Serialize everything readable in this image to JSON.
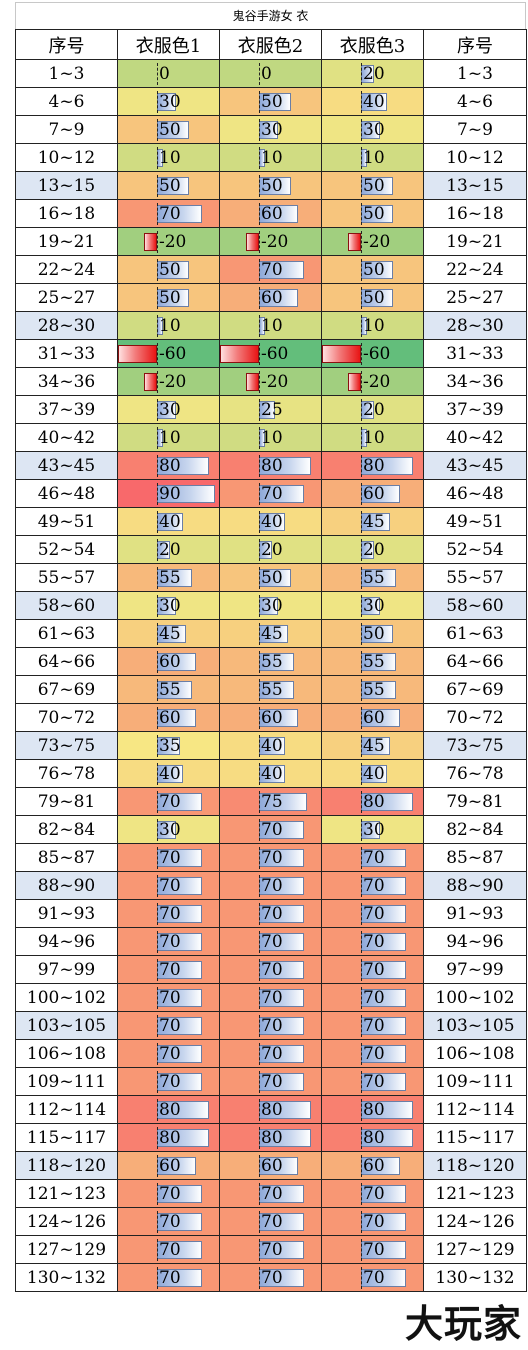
{
  "title": "鬼谷手游女 衣",
  "headers": [
    "序号",
    "衣服色1",
    "衣服色2",
    "衣服色3",
    "序号"
  ],
  "rows": [
    {
      "range": "1~3",
      "v": [
        0,
        0,
        20
      ],
      "alt": false
    },
    {
      "range": "4~6",
      "v": [
        30,
        50,
        40
      ],
      "alt": false
    },
    {
      "range": "7~9",
      "v": [
        50,
        30,
        30
      ],
      "alt": false
    },
    {
      "range": "10~12",
      "v": [
        10,
        10,
        10
      ],
      "alt": false
    },
    {
      "range": "13~15",
      "v": [
        50,
        50,
        50
      ],
      "alt": true
    },
    {
      "range": "16~18",
      "v": [
        70,
        60,
        50
      ],
      "alt": false
    },
    {
      "range": "19~21",
      "v": [
        -20,
        -20,
        -20
      ],
      "alt": false
    },
    {
      "range": "22~24",
      "v": [
        50,
        70,
        50
      ],
      "alt": false
    },
    {
      "range": "25~27",
      "v": [
        50,
        60,
        50
      ],
      "alt": false
    },
    {
      "range": "28~30",
      "v": [
        10,
        10,
        10
      ],
      "alt": true
    },
    {
      "range": "31~33",
      "v": [
        -60,
        -60,
        -60
      ],
      "alt": false
    },
    {
      "range": "34~36",
      "v": [
        -20,
        -20,
        -20
      ],
      "alt": false
    },
    {
      "range": "37~39",
      "v": [
        30,
        25,
        20
      ],
      "alt": false
    },
    {
      "range": "40~42",
      "v": [
        10,
        10,
        10
      ],
      "alt": false
    },
    {
      "range": "43~45",
      "v": [
        80,
        80,
        80
      ],
      "alt": true
    },
    {
      "range": "46~48",
      "v": [
        90,
        70,
        60
      ],
      "alt": false
    },
    {
      "range": "49~51",
      "v": [
        40,
        40,
        45
      ],
      "alt": false
    },
    {
      "range": "52~54",
      "v": [
        20,
        20,
        20
      ],
      "alt": false
    },
    {
      "range": "55~57",
      "v": [
        55,
        50,
        55
      ],
      "alt": false
    },
    {
      "range": "58~60",
      "v": [
        30,
        30,
        30
      ],
      "alt": true
    },
    {
      "range": "61~63",
      "v": [
        45,
        45,
        50
      ],
      "alt": false
    },
    {
      "range": "64~66",
      "v": [
        60,
        55,
        55
      ],
      "alt": false
    },
    {
      "range": "67~69",
      "v": [
        55,
        55,
        55
      ],
      "alt": false
    },
    {
      "range": "70~72",
      "v": [
        60,
        60,
        60
      ],
      "alt": false
    },
    {
      "range": "73~75",
      "v": [
        35,
        40,
        45
      ],
      "alt": true
    },
    {
      "range": "76~78",
      "v": [
        40,
        40,
        40
      ],
      "alt": false
    },
    {
      "range": "79~81",
      "v": [
        70,
        75,
        80
      ],
      "alt": false
    },
    {
      "range": "82~84",
      "v": [
        30,
        70,
        30
      ],
      "alt": false
    },
    {
      "range": "85~87",
      "v": [
        70,
        70,
        70
      ],
      "alt": false
    },
    {
      "range": "88~90",
      "v": [
        70,
        70,
        70
      ],
      "alt": true
    },
    {
      "range": "91~93",
      "v": [
        70,
        70,
        70
      ],
      "alt": false
    },
    {
      "range": "94~96",
      "v": [
        70,
        70,
        70
      ],
      "alt": false
    },
    {
      "range": "97~99",
      "v": [
        70,
        70,
        70
      ],
      "alt": false
    },
    {
      "range": "100~102",
      "v": [
        70,
        70,
        70
      ],
      "alt": false
    },
    {
      "range": "103~105",
      "v": [
        70,
        70,
        70
      ],
      "alt": true
    },
    {
      "range": "106~108",
      "v": [
        70,
        70,
        70
      ],
      "alt": false
    },
    {
      "range": "109~111",
      "v": [
        70,
        70,
        70
      ],
      "alt": false
    },
    {
      "range": "112~114",
      "v": [
        80,
        80,
        80
      ],
      "alt": false
    },
    {
      "range": "115~117",
      "v": [
        80,
        80,
        80
      ],
      "alt": false
    },
    {
      "range": "118~120",
      "v": [
        60,
        60,
        60
      ],
      "alt": true
    },
    {
      "range": "121~123",
      "v": [
        70,
        70,
        70
      ],
      "alt": false
    },
    {
      "range": "124~126",
      "v": [
        70,
        70,
        70
      ],
      "alt": false
    },
    {
      "range": "127~129",
      "v": [
        70,
        70,
        70
      ],
      "alt": false
    },
    {
      "range": "130~132",
      "v": [
        70,
        70,
        70
      ],
      "alt": false
    }
  ],
  "colors": {
    "scale": [
      "#63be7b",
      "#f7e784",
      "#f8696b"
    ],
    "alt_row": "#dde6f3",
    "bar_positive": "#8fa9d9",
    "bar_negative": "#e81515"
  },
  "watermark": "大玩家"
}
